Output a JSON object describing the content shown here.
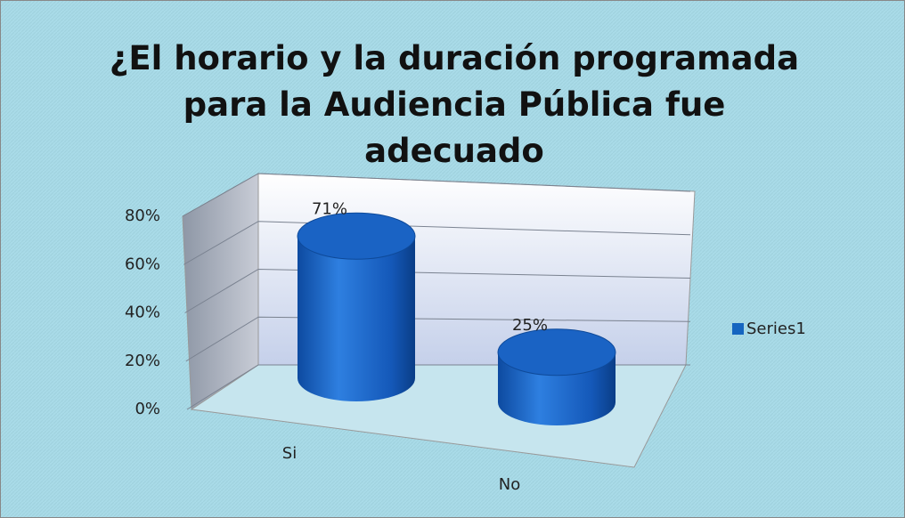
{
  "chart_data": {
    "type": "bar",
    "title": "¿El horario y la duración programada para la Audiencia Pública fue adecuado",
    "categories": [
      "Si",
      "No"
    ],
    "series": [
      {
        "name": "Series1",
        "color": "#1565c0",
        "values": [
          71,
          25
        ],
        "value_labels": [
          "71%",
          "25%"
        ]
      }
    ],
    "ylim": [
      0,
      80
    ],
    "yticks": [
      {
        "value": 0,
        "label": "0%"
      },
      {
        "value": 20,
        "label": "20%"
      },
      {
        "value": 40,
        "label": "40%"
      },
      {
        "value": 60,
        "label": "60%"
      },
      {
        "value": 80,
        "label": "80%"
      }
    ],
    "grid": true,
    "legend": "right"
  }
}
